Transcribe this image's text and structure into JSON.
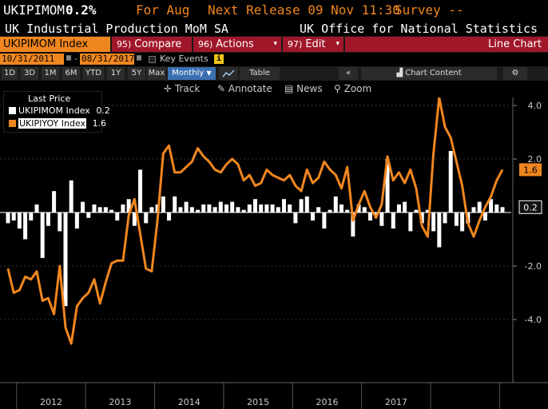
{
  "header": {
    "ticker": "UKIPIMOM",
    "value": "0.2%",
    "for_label": "For Aug",
    "next_release": "Next Release 09 Nov 11:30",
    "survey": "Survey --",
    "series_desc": "UK Industrial Production MoM SA",
    "source": "UK Office for National Statistics"
  },
  "toolbar": {
    "index_label": "UKIPIMOM Index",
    "compare_num": "95)",
    "compare_label": "Compare",
    "actions_num": "96)",
    "actions_label": "Actions",
    "edit_num": "97)",
    "edit_label": "Edit",
    "chart_type": "Line Chart"
  },
  "dates": {
    "start": "10/31/2011",
    "end": "08/31/2017",
    "key_events": "Key Events"
  },
  "freq": {
    "buttons": [
      "1D",
      "3D",
      "1M",
      "6M",
      "YTD",
      "1Y",
      "5Y",
      "Max"
    ],
    "selected": "Monthly",
    "table": "Table",
    "chart_content": "Chart Content"
  },
  "tools": {
    "track": "Track",
    "annotate": "Annotate",
    "news": "News",
    "zoom": "Zoom"
  },
  "legend": {
    "title": "Last Price",
    "items": [
      {
        "name": "UKIPIMOM Index",
        "value": "0.2",
        "color": "#ffffff"
      },
      {
        "name": "UKIPIYOY Index",
        "value": "1.6",
        "color": "#f0861f"
      }
    ]
  },
  "colors": {
    "accent": "#f0861f",
    "red": "#a0172a",
    "bars": "#ffffff",
    "line": "#f0861f"
  },
  "chart_data": {
    "type": "bar+line",
    "x_ticks": [
      "2012",
      "2013",
      "2014",
      "2015",
      "2016",
      "2017"
    ],
    "y_ticks": [
      "4.0",
      "2.0",
      "-2.0",
      "-4.0"
    ],
    "ylim": [
      -6.3,
      4.3
    ],
    "last_labels": {
      "line": "1.6",
      "bars": "0.2"
    },
    "series": [
      {
        "name": "UKIPIMOM Index",
        "kind": "bar",
        "values": [
          -0.4,
          -0.3,
          -0.6,
          -1.0,
          -0.3,
          0.3,
          -1.7,
          -0.5,
          0.8,
          -0.7,
          -3.5,
          1.2,
          -0.6,
          0.4,
          -0.2,
          0.3,
          0.2,
          0.2,
          0.1,
          -0.3,
          0.3,
          0.5,
          -0.5,
          1.6,
          -0.4,
          0.2,
          0.3,
          0.6,
          -0.3,
          0.6,
          0.2,
          0.4,
          0.2,
          0.1,
          0.3,
          0.3,
          0.2,
          0.4,
          0.3,
          0.4,
          0.2,
          0.1,
          0.3,
          0.5,
          0.3,
          0.3,
          0.3,
          0.2,
          0.5,
          0.3,
          -0.4,
          0.5,
          0.6,
          -0.3,
          0.2,
          -0.6,
          0.1,
          0.6,
          0.3,
          0.1,
          -0.9,
          0.3,
          0.2,
          -0.3,
          -0.1,
          -0.5,
          2.0,
          -0.6,
          0.3,
          0.4,
          -0.7,
          0.1,
          -0.4,
          0.1,
          -0.7,
          -1.3,
          -0.4,
          2.3,
          -0.5,
          -0.7,
          -0.4,
          0.2,
          0.4,
          -0.3,
          0.5,
          0.3,
          0.2
        ]
      },
      {
        "name": "UKIPIYOY Index",
        "kind": "line",
        "values": [
          -2.1,
          -3.0,
          -2.9,
          -2.4,
          -2.5,
          -2.2,
          -3.3,
          -3.2,
          -3.8,
          -2.0,
          -4.3,
          -4.9,
          -3.5,
          -3.2,
          -3.0,
          -2.5,
          -3.4,
          -2.6,
          -1.9,
          -1.8,
          -1.8,
          -0.1,
          0.5,
          -0.8,
          -2.1,
          -2.2,
          -0.3,
          2.2,
          2.5,
          1.5,
          1.5,
          1.7,
          1.9,
          2.4,
          2.1,
          1.9,
          1.6,
          1.5,
          1.8,
          2.0,
          1.8,
          1.2,
          1.4,
          1.0,
          1.1,
          1.6,
          1.4,
          1.3,
          1.2,
          1.4,
          1.0,
          0.8,
          1.6,
          1.1,
          1.3,
          1.9,
          1.6,
          1.4,
          0.9,
          1.7,
          -0.3,
          0.3,
          0.8,
          0.2,
          -0.2,
          0.3,
          2.1,
          1.2,
          1.5,
          1.1,
          1.6,
          0.9,
          -0.5,
          -0.9,
          2.2,
          4.3,
          3.2,
          2.8,
          1.9,
          1.0,
          -0.4,
          -0.9,
          -0.3,
          0.2,
          0.6,
          1.2,
          1.6
        ]
      }
    ]
  }
}
